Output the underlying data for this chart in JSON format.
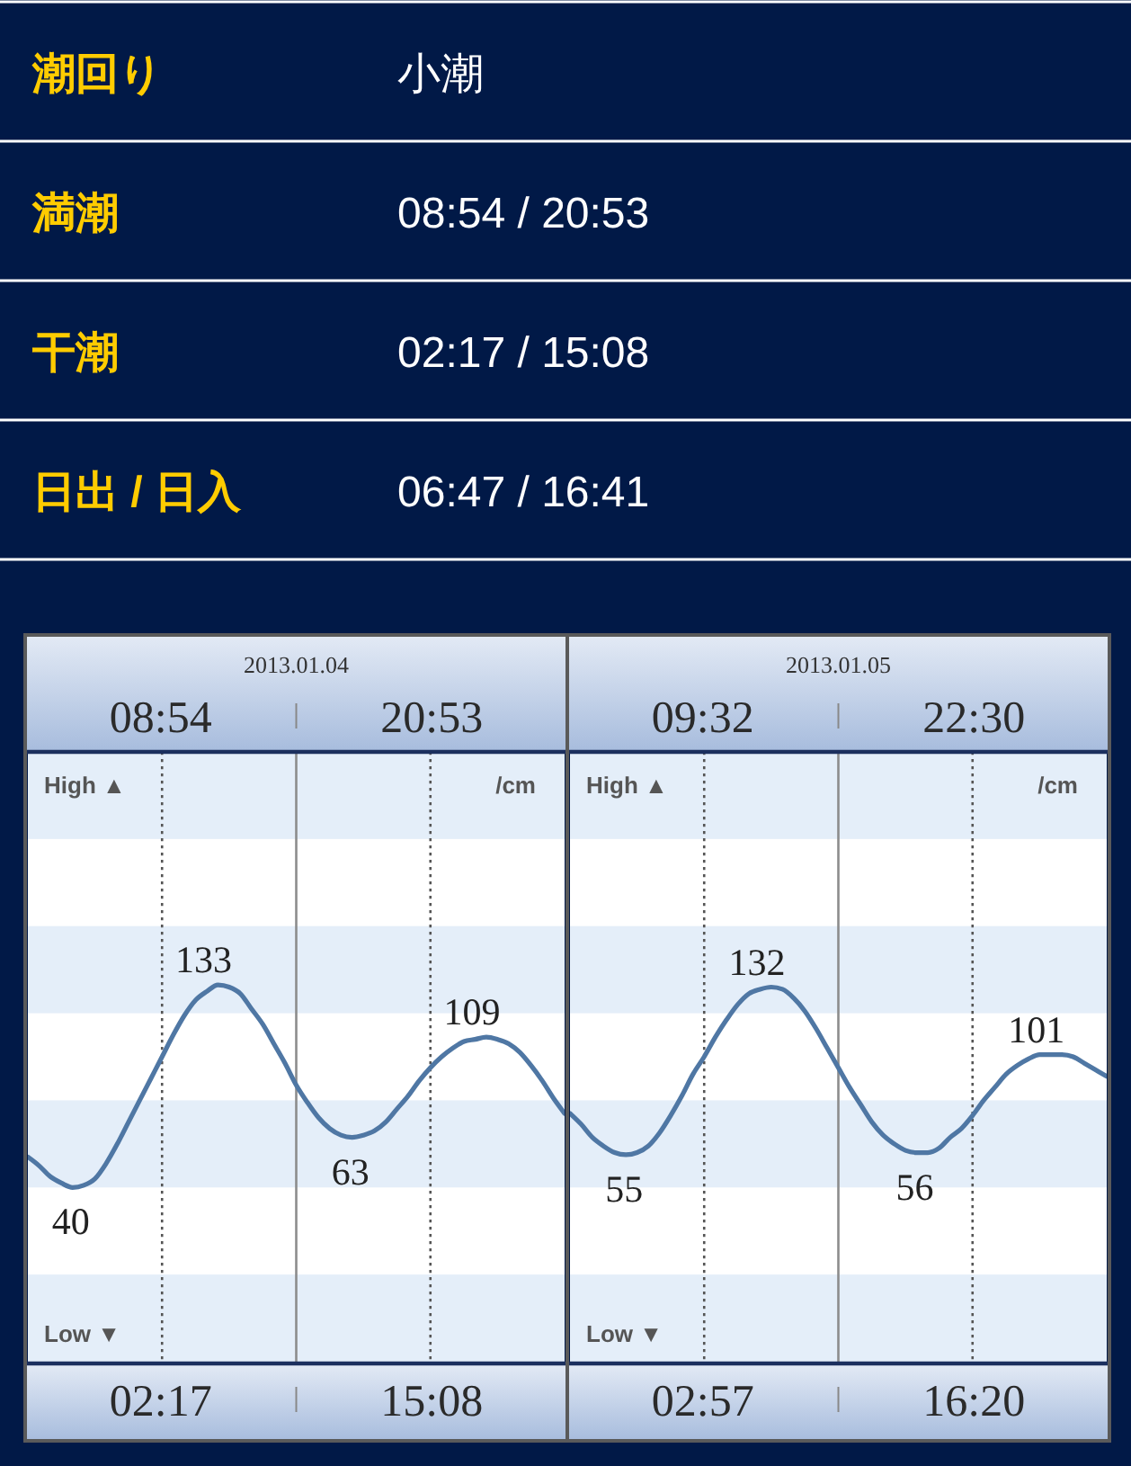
{
  "chart_data": [
    {
      "type": "other",
      "annotations": [
        "潮回り",
        "小潮",
        "満潮",
        "08:54 / 20:53",
        "干潮",
        "02:17 / 15:08",
        "日出 / 日入",
        "06:47 / 16:41"
      ]
    },
    {
      "type": "line",
      "title": "2013.01.04",
      "ylabel": "/cm",
      "annotations": [
        "08:54",
        "20:53",
        "02:17",
        "15:08",
        "High ▲",
        "Low ▼"
      ],
      "ylim": [
        -40,
        240
      ],
      "tick_labels": false,
      "categories": [
        null,
        null,
        null,
        null,
        null,
        null,
        null,
        null,
        null,
        null,
        null,
        null,
        null,
        null,
        null,
        null,
        null,
        null,
        null,
        null,
        null,
        null,
        null,
        null,
        null,
        null,
        null,
        null,
        null,
        null,
        null,
        null,
        null,
        null,
        null,
        null,
        null,
        null,
        null,
        null,
        null,
        null,
        null,
        null,
        null,
        null,
        null,
        null,
        null
      ],
      "series": [
        {
          "color": "#4f77a4",
          "values": [
            54,
            50,
            45,
            42,
            40,
            41,
            44,
            51,
            60,
            70,
            80,
            90,
            100,
            110,
            119,
            126,
            130,
            133,
            132,
            129,
            122,
            115,
            106,
            97,
            87,
            79,
            72,
            67,
            64,
            63,
            64,
            66,
            70,
            76,
            82,
            89,
            95,
            100,
            104,
            107,
            108,
            109,
            108,
            106,
            102,
            96,
            89,
            81,
            74
          ],
          "value_labels": [
            null,
            null,
            null,
            null,
            "40",
            null,
            null,
            null,
            null,
            null,
            null,
            null,
            null,
            null,
            null,
            null,
            null,
            "133",
            null,
            null,
            null,
            null,
            null,
            null,
            null,
            null,
            null,
            null,
            null,
            "63",
            null,
            null,
            null,
            null,
            null,
            null,
            null,
            null,
            null,
            null,
            null,
            "109",
            null,
            null,
            null,
            null,
            null,
            null,
            null
          ]
        }
      ]
    },
    {
      "type": "line",
      "title": "2013.01.05",
      "ylabel": "/cm",
      "annotations": [
        "09:32",
        "22:30",
        "02:57",
        "16:20",
        "High ▲",
        "Low ▼"
      ],
      "ylim": [
        -40,
        240
      ],
      "tick_labels": false,
      "categories": [
        null,
        null,
        null,
        null,
        null,
        null,
        null,
        null,
        null,
        null,
        null,
        null,
        null,
        null,
        null,
        null,
        null,
        null,
        null,
        null,
        null,
        null,
        null,
        null,
        null,
        null,
        null,
        null,
        null,
        null,
        null,
        null,
        null,
        null,
        null,
        null,
        null,
        null,
        null,
        null,
        null,
        null,
        null,
        null,
        null,
        null,
        null,
        null,
        null
      ],
      "series": [
        {
          "color": "#4f77a4",
          "values": [
            74,
            69,
            63,
            59,
            56,
            55,
            56,
            59,
            65,
            73,
            82,
            92,
            100,
            109,
            117,
            124,
            129,
            131,
            132,
            131,
            127,
            121,
            113,
            104,
            95,
            86,
            78,
            70,
            64,
            60,
            57,
            56,
            56,
            58,
            63,
            67,
            73,
            80,
            86,
            92,
            96,
            99,
            101,
            101,
            101,
            100,
            97,
            94,
            91
          ],
          "value_labels": [
            null,
            null,
            null,
            null,
            null,
            "55",
            null,
            null,
            null,
            null,
            null,
            null,
            null,
            null,
            null,
            null,
            null,
            null,
            "132",
            null,
            null,
            null,
            null,
            null,
            null,
            null,
            null,
            null,
            null,
            null,
            null,
            "56",
            null,
            null,
            null,
            null,
            null,
            null,
            null,
            null,
            null,
            null,
            null,
            "101",
            null,
            null,
            null,
            null,
            null
          ]
        }
      ]
    }
  ]
}
